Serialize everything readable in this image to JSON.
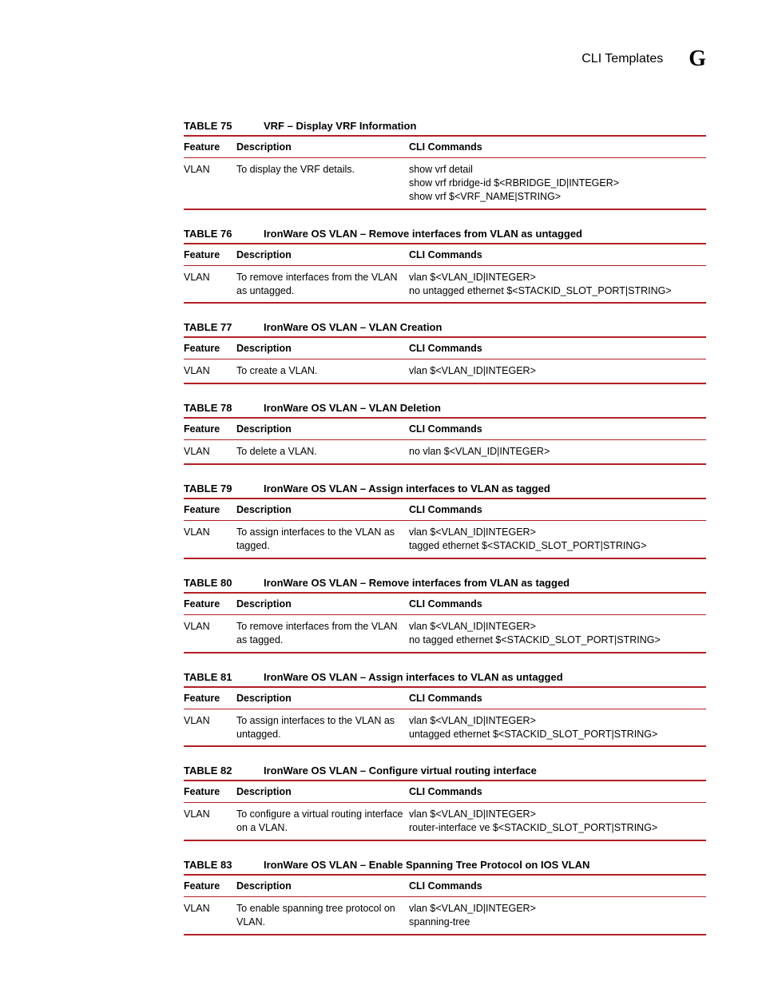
{
  "header": {
    "title": "CLI Templates",
    "letter": "G"
  },
  "columns": {
    "feature": "Feature",
    "description": "Description",
    "commands": "CLI Commands"
  },
  "tables": [
    {
      "label": "TABLE 75",
      "title": "VRF – Display VRF Information",
      "feature": "VLAN",
      "description": "To display the VRF details.",
      "commands": [
        "show vrf detail",
        "show vrf rbridge-id $<RBRIDGE_ID|INTEGER>",
        "show vrf $<VRF_NAME|STRING>"
      ]
    },
    {
      "label": "TABLE 76",
      "title": "IronWare OS VLAN – Remove interfaces from VLAN as untagged",
      "feature": "VLAN",
      "description": "To remove interfaces from the VLAN as untagged.",
      "commands": [
        "vlan $<VLAN_ID|INTEGER>",
        "no untagged ethernet $<STACKID_SLOT_PORT|STRING>"
      ]
    },
    {
      "label": "TABLE 77",
      "title": "IronWare OS VLAN – VLAN Creation",
      "feature": "VLAN",
      "description": "To create a VLAN.",
      "commands": [
        "vlan $<VLAN_ID|INTEGER>"
      ]
    },
    {
      "label": "TABLE 78",
      "title": "IronWare OS VLAN – VLAN Deletion",
      "feature": "VLAN",
      "description": "To delete a VLAN.",
      "commands": [
        "no vlan $<VLAN_ID|INTEGER>"
      ]
    },
    {
      "label": "TABLE 79",
      "title": "IronWare OS VLAN – Assign interfaces to VLAN as tagged",
      "feature": "VLAN",
      "description": "To assign interfaces to the VLAN as tagged.",
      "commands": [
        "vlan $<VLAN_ID|INTEGER>",
        "tagged ethernet $<STACKID_SLOT_PORT|STRING>"
      ]
    },
    {
      "label": "TABLE 80",
      "title": "IronWare OS VLAN – Remove interfaces from VLAN as tagged",
      "feature": "VLAN",
      "description": "To remove interfaces from the VLAN as tagged.",
      "commands": [
        "vlan $<VLAN_ID|INTEGER>",
        "no tagged ethernet $<STACKID_SLOT_PORT|STRING>"
      ]
    },
    {
      "label": "TABLE 81",
      "title": "IronWare OS VLAN – Assign interfaces to VLAN as untagged",
      "feature": "VLAN",
      "description": "To assign interfaces to the VLAN as untagged.",
      "commands": [
        "vlan $<VLAN_ID|INTEGER>",
        "untagged ethernet $<STACKID_SLOT_PORT|STRING>"
      ]
    },
    {
      "label": "TABLE 82",
      "title": "IronWare OS VLAN – Configure virtual routing interface",
      "feature": "VLAN",
      "description": "To configure a virtual routing interface on a VLAN.",
      "commands": [
        "vlan $<VLAN_ID|INTEGER>",
        "router-interface ve $<STACKID_SLOT_PORT|STRING>"
      ]
    },
    {
      "label": "TABLE 83",
      "title": "IronWare OS VLAN – Enable Spanning Tree Protocol on IOS VLAN",
      "feature": "VLAN",
      "description": "To enable spanning tree protocol on VLAN.",
      "commands": [
        "vlan $<VLAN_ID|INTEGER>",
        "spanning-tree"
      ]
    }
  ]
}
